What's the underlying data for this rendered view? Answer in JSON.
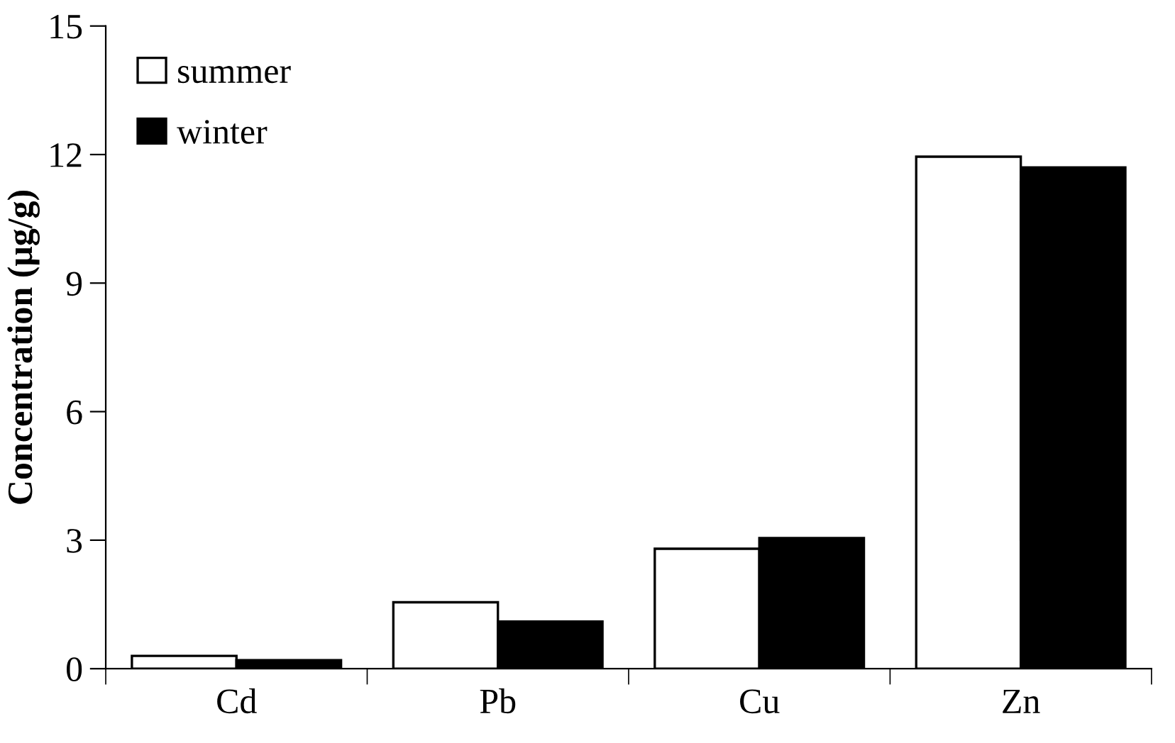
{
  "chart_data": {
    "type": "bar",
    "ylabel": "Concentration (μg/g)",
    "categories": [
      "Cd",
      "Pb",
      "Cu",
      "Zn"
    ],
    "series": [
      {
        "name": "summer",
        "color": "#ffffff",
        "values": [
          0.3,
          1.55,
          2.8,
          11.95
        ]
      },
      {
        "name": "winter",
        "color": "#000000",
        "values": [
          0.2,
          1.1,
          3.05,
          11.7
        ]
      }
    ],
    "ylim": [
      0,
      15
    ],
    "yticks": [
      0,
      3,
      6,
      9,
      12,
      15
    ],
    "grid": false,
    "legend": "top left"
  }
}
